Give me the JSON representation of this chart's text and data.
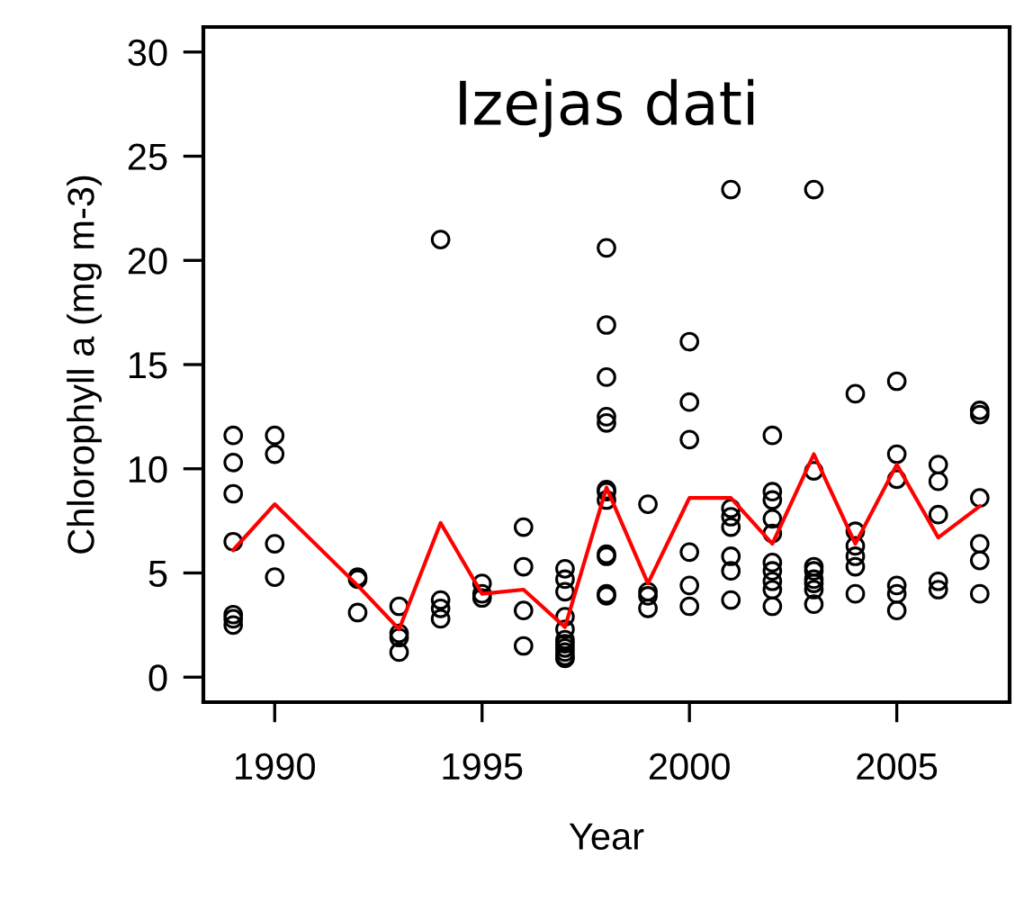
{
  "chart_data": {
    "type": "scatter",
    "title": "Izejas dati",
    "xlabel": "Year",
    "ylabel": "Chlorophyll a (mg m-3)",
    "xlim": [
      1988.28,
      2007.72
    ],
    "xticks": [
      1990,
      1995,
      2000,
      2005
    ],
    "ylim": [
      -1.2,
      31.2
    ],
    "yticks": [
      0,
      5,
      10,
      15,
      20,
      25,
      30
    ],
    "grid": false,
    "legend": false,
    "series": [
      {
        "marker": "circle",
        "color": "#000000",
        "x": [
          1989,
          1989,
          1989,
          1989,
          1989,
          1989,
          1989,
          1990,
          1990,
          1990,
          1990,
          1992,
          1992,
          1992,
          1993,
          1993,
          1993,
          1993,
          1994,
          1994,
          1994,
          1994,
          1995,
          1995,
          1995,
          1996,
          1996,
          1996,
          1996,
          1997,
          1997,
          1997,
          1997,
          1997,
          1997,
          1997,
          1997,
          1997,
          1997,
          1997,
          1998,
          1998,
          1998,
          1998,
          1998,
          1998,
          1998,
          1998,
          1998,
          1998,
          1998,
          1998,
          1999,
          1999,
          1999,
          1999,
          2000,
          2000,
          2000,
          2000,
          2000,
          2000,
          2001,
          2001,
          2001,
          2001,
          2001,
          2001,
          2001,
          2002,
          2002,
          2002,
          2002,
          2002,
          2002,
          2002,
          2002,
          2002,
          2002,
          2003,
          2003,
          2003,
          2003,
          2003,
          2003,
          2003,
          2003,
          2004,
          2004,
          2004,
          2004,
          2004,
          2004,
          2005,
          2005,
          2005,
          2005,
          2005,
          2005,
          2006,
          2006,
          2006,
          2006,
          2006,
          2007,
          2007,
          2007,
          2007,
          2007,
          2007
        ],
        "values": [
          11.6,
          10.3,
          8.8,
          6.5,
          3.0,
          2.8,
          2.5,
          11.6,
          10.7,
          6.4,
          4.8,
          4.8,
          4.7,
          3.1,
          3.4,
          2.1,
          1.9,
          1.2,
          21.0,
          3.7,
          3.3,
          2.8,
          4.5,
          4.0,
          3.8,
          7.2,
          5.3,
          3.2,
          1.5,
          5.2,
          4.7,
          4.1,
          2.9,
          2.3,
          1.8,
          1.6,
          1.4,
          1.2,
          1.0,
          0.9,
          20.6,
          16.9,
          14.4,
          12.5,
          12.2,
          9.0,
          8.9,
          8.5,
          5.9,
          5.8,
          4.0,
          3.9,
          8.3,
          4.1,
          3.9,
          3.3,
          16.1,
          13.2,
          11.4,
          6.0,
          4.4,
          3.4,
          23.4,
          8.1,
          7.7,
          7.2,
          5.8,
          5.1,
          3.7,
          11.6,
          8.9,
          8.5,
          7.6,
          6.9,
          5.5,
          5.1,
          4.6,
          4.2,
          3.4,
          23.4,
          9.9,
          5.3,
          5.1,
          4.7,
          4.5,
          4.2,
          3.5,
          13.6,
          7.0,
          6.3,
          5.8,
          5.3,
          4.0,
          14.2,
          10.7,
          9.5,
          4.4,
          4.0,
          3.2,
          10.2,
          9.4,
          7.8,
          4.6,
          4.2,
          12.8,
          12.6,
          8.6,
          6.4,
          5.6,
          4.0
        ]
      },
      {
        "type": "line",
        "marker": "none",
        "line_style": "solid",
        "color": "#ff0000",
        "x": [
          1989,
          1990,
          1992,
          1993,
          1994,
          1995,
          1996,
          1997,
          1998,
          1999,
          2000,
          2001,
          2002,
          2003,
          2004,
          2005,
          2006,
          2007
        ],
        "values": [
          6.1,
          8.3,
          4.4,
          2.3,
          7.4,
          4.0,
          4.2,
          2.4,
          9.1,
          4.5,
          8.6,
          8.6,
          6.4,
          10.7,
          6.4,
          10.2,
          6.7,
          8.2
        ]
      }
    ]
  }
}
